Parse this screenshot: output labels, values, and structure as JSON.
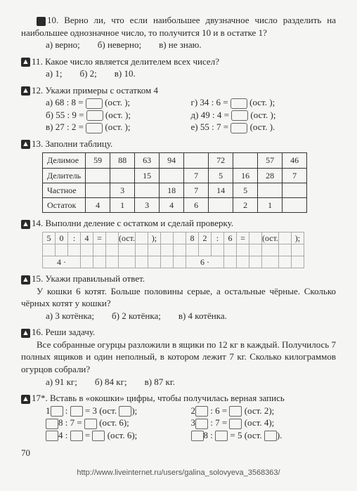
{
  "q10": {
    "num": "10.",
    "text": "Верно ли, что если наибольшее двузначное число разделить на наибольшее однозначное число, то получится 10 и в остатке 1?",
    "opts": [
      "а) верно;",
      "б) неверно;",
      "в) не знаю."
    ]
  },
  "q11": {
    "num": "11.",
    "text": "Какое число является делителем всех чисел?",
    "opts": [
      "а) 1;",
      "б) 2;",
      "в) 10."
    ]
  },
  "q12": {
    "num": "12.",
    "text": "Укажи примеры с остатком 4",
    "rows_left": [
      {
        "l": "а)",
        "e": "68 : 8 =",
        "suf": "(ост.   );"
      },
      {
        "l": "б)",
        "e": "55 : 9 =",
        "suf": "(ост.   );"
      },
      {
        "l": "в)",
        "e": "27 : 2 =",
        "suf": "(ост.   );"
      }
    ],
    "rows_right": [
      {
        "l": "г)",
        "e": "34 : 6 =",
        "suf": "(ост.   );"
      },
      {
        "l": "д)",
        "e": "49 : 4 =",
        "suf": "(ост.   );"
      },
      {
        "l": "е)",
        "e": "55 : 7 =",
        "suf": "(ост.   )."
      }
    ]
  },
  "q13": {
    "num": "13.",
    "text": "Заполни таблицу.",
    "table": {
      "rows": [
        [
          "Делимое",
          "59",
          "88",
          "63",
          "94",
          "",
          "72",
          "",
          "57",
          "46"
        ],
        [
          "Делитель",
          "",
          "",
          "15",
          "",
          "7",
          "5",
          "16",
          "28",
          "7"
        ],
        [
          "Частное",
          "",
          "3",
          "",
          "18",
          "7",
          "14",
          "5",
          "",
          ""
        ],
        [
          "Остаток",
          "4",
          "1",
          "3",
          "4",
          "6",
          "",
          "2",
          "1",
          ""
        ]
      ]
    }
  },
  "q14": {
    "num": "14.",
    "text": "Выполни деление с остатком и сделай проверку.",
    "row1": [
      "5",
      "0",
      ":",
      "4",
      "=",
      "",
      "(ост.",
      "",
      ");",
      "",
      "",
      "8",
      "2",
      ":",
      "6",
      "=",
      "",
      "(ост.",
      "",
      ");"
    ],
    "row2_a": "4 ·",
    "row2_b": "6 ·"
  },
  "q15": {
    "num": "15.",
    "text1": "Укажи правильный ответ.",
    "text2": "У кошки 6 котят. Больше половины серые, а остальные чёрные. Сколько чёрных котят у кошки?",
    "opts": [
      "а) 3 котёнка;",
      "б) 2 котёнка;",
      "в) 4 котёнка."
    ]
  },
  "q16": {
    "num": "16.",
    "text1": "Реши задачу.",
    "text2": "Все собранные огурцы разложили в ящики по 12 кг в каждый. Получилось 7 полных ящиков и один неполный, в котором лежит 7 кг. Сколько килограммов огурцов собрали?",
    "opts": [
      "а) 91 кг;",
      "б) 84 кг;",
      "в) 87 кг."
    ]
  },
  "q17": {
    "num": "17*.",
    "text": "Вставь в «окошки» цифры, чтобы получилась верная запись",
    "left": [
      {
        "pre": "1",
        "mid": " : ",
        "post": " = 3 (ост. ",
        "end": ");"
      },
      {
        "full": "8 : 7 = ",
        "post": " (ост. 6);"
      },
      {
        "pre": "",
        "mid": "4 : ",
        "post": " = ",
        "end": " (ост. 6);"
      }
    ],
    "right": [
      {
        "pre": "2 ",
        "mid": " : 6 = ",
        "end": " (ост. 2);"
      },
      {
        "pre": "3 ",
        "mid": " : 7 = ",
        "end": " (ост. 4);"
      },
      {
        "pre": "",
        "mid": "8 : ",
        "post": " = 5 (ост. ",
        "end": ")."
      }
    ]
  },
  "page": "70",
  "url": "http://www.liveinternet.ru/users/galina_solovyeva_3568363/"
}
